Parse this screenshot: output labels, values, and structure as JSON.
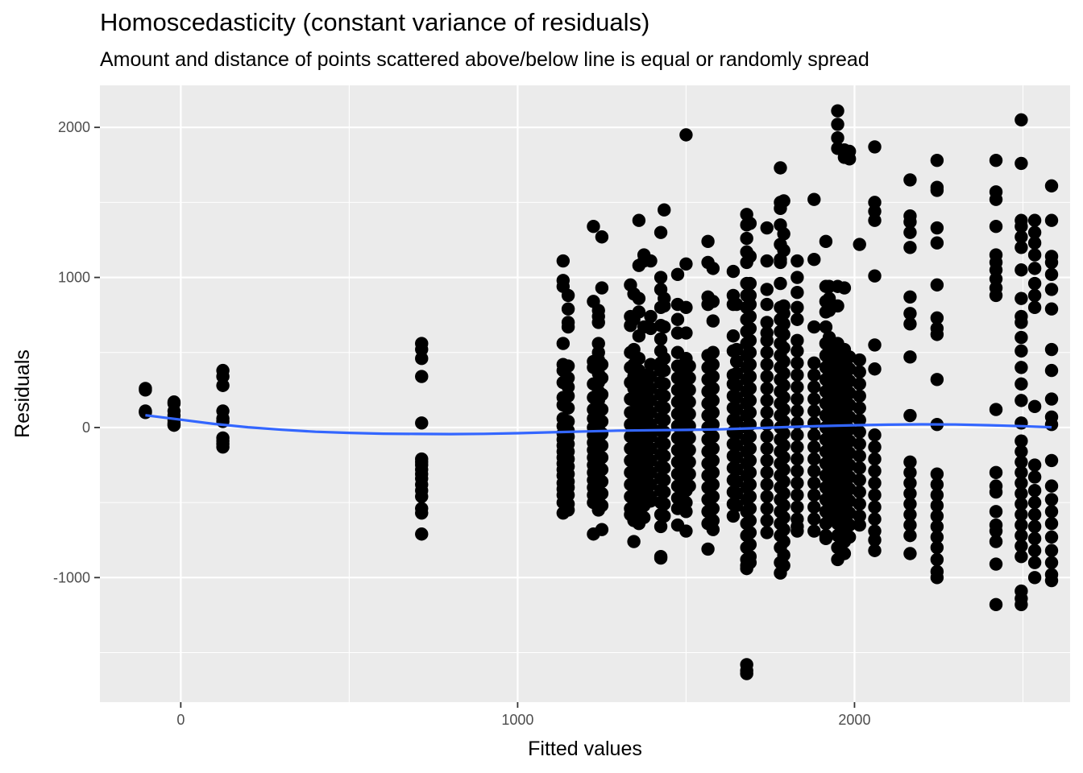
{
  "chart_data": {
    "type": "scatter",
    "title": "Homoscedasticity (constant variance of residuals)",
    "subtitle": "Amount and distance of points scattered above/below line is equal or randomly spread",
    "xlabel": "Fitted values",
    "ylabel": "Residuals",
    "xlim": [
      -240,
      2640
    ],
    "ylim": [
      -1830,
      2280
    ],
    "x_ticks": [
      0,
      1000,
      2000
    ],
    "x_tick_labels": [
      "0",
      "1000",
      "2000"
    ],
    "y_ticks": [
      -1000,
      0,
      1000,
      2000
    ],
    "y_tick_labels": [
      "-1000",
      "0",
      "1000",
      "2000"
    ],
    "grid": true,
    "point_color": "#000000",
    "smooth_color": "#3366ff",
    "panel_background": "#ebebeb",
    "points_groups": [
      {
        "x": -105,
        "y": [
          260,
          250,
          110,
          105,
          100
        ]
      },
      {
        "x": -20,
        "y": [
          170,
          160,
          110,
          80,
          50,
          30,
          20,
          15
        ]
      },
      {
        "x": 125,
        "y": [
          380,
          340,
          280,
          110,
          60,
          40,
          -70,
          -90,
          -110,
          -130
        ]
      },
      {
        "x": 715,
        "y": [
          560,
          520,
          460,
          340,
          30,
          -210,
          -230,
          -250,
          -280,
          -310,
          -340,
          -380,
          -420,
          -460,
          -540,
          -570,
          -710
        ]
      },
      {
        "x": 1135,
        "y": [
          1110,
          980,
          940,
          560,
          420,
          380,
          300,
          200,
          150,
          60,
          10,
          -40,
          -80,
          -120,
          -160,
          -200,
          -240,
          -280,
          -320,
          -370,
          -410,
          -450,
          -500,
          -570
        ]
      },
      {
        "x": 1150,
        "y": [
          880,
          790,
          700,
          670,
          410,
          330,
          270,
          210,
          130,
          40,
          -20,
          -60,
          -110,
          -160,
          -210,
          -260,
          -310,
          -360,
          -400,
          -450,
          -510,
          -550
        ]
      },
      {
        "x": 1225,
        "y": [
          1340,
          840,
          440,
          400,
          290,
          200,
          120,
          60,
          0,
          -50,
          -100,
          -150,
          -200,
          -250,
          -300,
          -350,
          -400,
          -450,
          -500,
          -710
        ]
      },
      {
        "x": 1240,
        "y": [
          780,
          740,
          700,
          560,
          500,
          450,
          360,
          300,
          240,
          180,
          110,
          50,
          -10,
          -70,
          -130,
          -190,
          -250,
          -310,
          -370,
          -430,
          -490,
          -550
        ]
      },
      {
        "x": 1250,
        "y": [
          1270,
          930,
          420,
          330,
          220,
          120,
          40,
          -40,
          -120,
          -200,
          -280,
          -360,
          -440,
          -520,
          -680
        ]
      },
      {
        "x": 1335,
        "y": [
          950,
          740,
          680,
          500,
          400,
          300,
          190,
          100,
          20,
          -60,
          -140,
          -220,
          -300,
          -380,
          -460,
          -540,
          -580
        ]
      },
      {
        "x": 1345,
        "y": [
          890,
          720,
          520,
          420,
          340,
          260,
          180,
          100,
          20,
          -60,
          -140,
          -220,
          -300,
          -380,
          -460,
          -540,
          -620,
          -760
        ]
      },
      {
        "x": 1360,
        "y": [
          1380,
          1080,
          860,
          770,
          610,
          460,
          380,
          300,
          220,
          140,
          60,
          -20,
          -100,
          -180,
          -260,
          -340,
          -420,
          -500,
          -580,
          -640
        ]
      },
      {
        "x": 1375,
        "y": [
          1150,
          1110,
          670,
          350,
          280,
          200,
          120,
          40,
          -40,
          -120,
          -200,
          -280,
          -360,
          -440,
          -520,
          -600
        ]
      },
      {
        "x": 1395,
        "y": [
          1110,
          740,
          660,
          420,
          340,
          260,
          180,
          100,
          20,
          -60,
          -140,
          -220,
          -300,
          -380,
          -460,
          -490
        ]
      },
      {
        "x": 1425,
        "y": [
          1300,
          1000,
          920,
          800,
          680,
          590,
          510,
          430,
          380,
          300,
          220,
          140,
          60,
          -20,
          -100,
          -180,
          -260,
          -340,
          -420,
          -500,
          -580,
          -660,
          -860,
          -870
        ]
      },
      {
        "x": 1435,
        "y": [
          1450,
          860,
          810,
          670,
          460,
          380,
          290,
          210,
          130,
          50,
          -30,
          -110,
          -190,
          -270,
          -350,
          -430,
          -510,
          -590
        ]
      },
      {
        "x": 1475,
        "y": [
          1020,
          820,
          720,
          630,
          500,
          410,
          330,
          250,
          170,
          90,
          10,
          -70,
          -150,
          -230,
          -310,
          -390,
          -470,
          -540,
          -650
        ]
      },
      {
        "x": 1500,
        "y": [
          1950,
          1090,
          800,
          630,
          460,
          380,
          300,
          220,
          140,
          60,
          -20,
          -100,
          -180,
          -260,
          -340,
          -420,
          -500,
          -560,
          -690
        ]
      },
      {
        "x": 1510,
        "y": [
          410,
          330,
          250,
          170,
          90,
          10,
          -70,
          -150,
          -230,
          -310,
          -390
        ]
      },
      {
        "x": 1565,
        "y": [
          1240,
          1100,
          870,
          820,
          480,
          400,
          320,
          240,
          160,
          80,
          0,
          -80,
          -160,
          -240,
          -320,
          -400,
          -480,
          -560,
          -640,
          -810
        ]
      },
      {
        "x": 1580,
        "y": [
          1060,
          840,
          710,
          500,
          420,
          340,
          260,
          180,
          100,
          20,
          -60,
          -140,
          -220,
          -300,
          -380,
          -460,
          -540,
          -620,
          -680
        ]
      },
      {
        "x": 1640,
        "y": [
          1040,
          880,
          820,
          610,
          510,
          350,
          290,
          210,
          130,
          50,
          -30,
          -110,
          -190,
          -270,
          -350,
          -430,
          -510,
          -590
        ]
      },
      {
        "x": 1650,
        "y": [
          820,
          520,
          440,
          360,
          280,
          200,
          120,
          40,
          -40,
          -120,
          -200,
          -280,
          -360,
          -440,
          -520
        ]
      },
      {
        "x": 1680,
        "y": [
          1420,
          1350,
          1260,
          1170,
          1100,
          960,
          880,
          800,
          720,
          640,
          560,
          480,
          400,
          320,
          240,
          160,
          80,
          0,
          -80,
          -160,
          -240,
          -320,
          -400,
          -480,
          -560,
          -640,
          -720,
          -800,
          -880,
          -920,
          -940,
          -1580,
          -1620,
          -1640
        ]
      },
      {
        "x": 1690,
        "y": [
          1360,
          1140,
          960,
          880,
          820,
          740,
          660,
          580,
          500,
          420,
          340,
          260,
          180,
          100,
          20,
          -60,
          -140,
          -220,
          -300,
          -380,
          -460,
          -540,
          -620,
          -700,
          -780,
          -860,
          -900
        ]
      },
      {
        "x": 1740,
        "y": [
          1330,
          1110,
          920,
          820,
          700,
          630,
          580,
          500,
          420,
          340,
          260,
          180,
          100,
          20,
          -60,
          -140,
          -220,
          -300,
          -380,
          -460,
          -540,
          -620,
          -700
        ]
      },
      {
        "x": 1780,
        "y": [
          1730,
          1500,
          1460,
          1350,
          1220,
          1120,
          1100,
          960,
          800,
          720,
          640,
          560,
          480,
          400,
          320,
          240,
          160,
          80,
          0,
          -80,
          -160,
          -240,
          -320,
          -400,
          -480,
          -560,
          -640,
          -720,
          -800,
          -900,
          -970
        ]
      },
      {
        "x": 1790,
        "y": [
          1510,
          1290,
          1180,
          810,
          760,
          690,
          620,
          530,
          440,
          360,
          280,
          200,
          120,
          40,
          -40,
          -120,
          -200,
          -280,
          -360,
          -440,
          -520,
          -600,
          -680,
          -760,
          -850,
          -920
        ]
      },
      {
        "x": 1830,
        "y": [
          1110,
          1000,
          900,
          800,
          720,
          580,
          510,
          430,
          350,
          270,
          190,
          110,
          30,
          -50,
          -130,
          -210,
          -290,
          -370,
          -450,
          -530,
          -610,
          -660,
          -690
        ]
      },
      {
        "x": 1880,
        "y": [
          1520,
          1120,
          670,
          430,
          350,
          270,
          190,
          110,
          30,
          -50,
          -130,
          -210,
          -290,
          -370,
          -450,
          -530,
          -610,
          -690
        ]
      },
      {
        "x": 1915,
        "y": [
          1240,
          940,
          840,
          770,
          670,
          560,
          480,
          400,
          320,
          240,
          160,
          80,
          0,
          -80,
          -160,
          -240,
          -320,
          -400,
          -480,
          -560,
          -640,
          -720,
          -740
        ]
      },
      {
        "x": 1925,
        "y": [
          940,
          860,
          780,
          600,
          520,
          440,
          360,
          280,
          200,
          120,
          40,
          -40,
          -120,
          -200,
          -280,
          -360,
          -440,
          -520,
          -600
        ]
      },
      {
        "x": 1950,
        "y": [
          2110,
          2020,
          1930,
          1860,
          940,
          810,
          560,
          480,
          400,
          320,
          240,
          160,
          80,
          0,
          -80,
          -160,
          -240,
          -320,
          -400,
          -480,
          -560,
          -640,
          -720,
          -800,
          -880
        ]
      },
      {
        "x": 1970,
        "y": [
          1850,
          1800,
          930,
          520,
          440,
          360,
          280,
          200,
          120,
          40,
          -40,
          -120,
          -200,
          -280,
          -360,
          -440,
          -520,
          -600,
          -680,
          -760,
          -840
        ]
      },
      {
        "x": 1985,
        "y": [
          1840,
          1790,
          470,
          390,
          310,
          230,
          150,
          70,
          -10,
          -90,
          -170,
          -250,
          -330,
          -410,
          -490,
          -570,
          -650,
          -730
        ]
      },
      {
        "x": 2015,
        "y": [
          1220,
          450,
          370,
          290,
          210,
          130,
          50,
          -30,
          -110,
          -190,
          -270,
          -350,
          -430,
          -510,
          -590,
          -650
        ]
      },
      {
        "x": 2060,
        "y": [
          1870,
          1500,
          1440,
          1380,
          1010,
          550,
          390,
          -50,
          -130,
          -210,
          -290,
          -370,
          -450,
          -530,
          -610,
          -690,
          -750,
          -820
        ]
      },
      {
        "x": 2165,
        "y": [
          1650,
          1410,
          1370,
          1300,
          1200,
          870,
          760,
          690,
          470,
          80,
          -230,
          -300,
          -370,
          -440,
          -510,
          -580,
          -650,
          -720,
          -840
        ]
      },
      {
        "x": 2245,
        "y": [
          1780,
          1600,
          1580,
          1330,
          1230,
          950,
          730,
          660,
          620,
          320,
          20,
          -310,
          -380,
          -450,
          -520,
          -590,
          -660,
          -730,
          -800,
          -880,
          -960,
          -1000
        ]
      },
      {
        "x": 2420,
        "y": [
          1780,
          1570,
          1520,
          1340,
          1150,
          1100,
          1050,
          990,
          930,
          880,
          120,
          -300,
          -390,
          -430,
          -560,
          -650,
          -690,
          -760,
          -910,
          -1180
        ]
      },
      {
        "x": 2495,
        "y": [
          2050,
          1760,
          1380,
          1340,
          1270,
          1200,
          1050,
          860,
          740,
          700,
          600,
          510,
          400,
          290,
          180,
          30,
          -90,
          -160,
          -230,
          -300,
          -370,
          -440,
          -510,
          -580,
          -650,
          -720,
          -790,
          -860,
          -1090,
          -1140,
          -1180
        ]
      },
      {
        "x": 2535,
        "y": [
          1380,
          1300,
          1230,
          1150,
          1060,
          960,
          880,
          800,
          140,
          -250,
          -330,
          -420,
          -500,
          -580,
          -660,
          -740,
          -820,
          -900,
          -1000
        ]
      },
      {
        "x": 2585,
        "y": [
          1610,
          1380,
          1140,
          1100,
          1020,
          920,
          790,
          520,
          380,
          190,
          70,
          20,
          -220,
          -390,
          -480,
          -560,
          -640,
          -730,
          -820,
          -900,
          -980,
          -1020
        ]
      }
    ],
    "smooth_line": {
      "x": [
        -105,
        0,
        100,
        200,
        300,
        400,
        500,
        600,
        700,
        800,
        900,
        1000,
        1100,
        1200,
        1300,
        1400,
        1500,
        1600,
        1700,
        1800,
        1900,
        2000,
        2100,
        2200,
        2300,
        2400,
        2500,
        2585
      ],
      "y": [
        82,
        52,
        24,
        2,
        -15,
        -28,
        -36,
        -41,
        -43,
        -44,
        -42,
        -38,
        -32,
        -26,
        -21,
        -18,
        -16,
        -12,
        -5,
        3,
        10,
        15,
        19,
        21,
        20,
        15,
        9,
        2
      ]
    }
  }
}
